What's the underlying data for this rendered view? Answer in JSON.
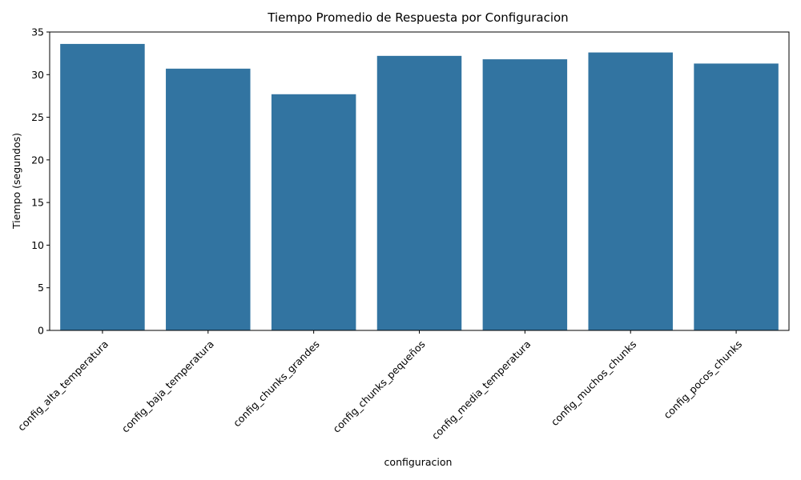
{
  "chart_data": {
    "type": "bar",
    "title": "Tiempo Promedio de Respuesta por Configuracion",
    "xlabel": "configuracion",
    "ylabel": "Tiempo (segundos)",
    "categories": [
      "config_alta_temperatura",
      "config_baja_temperatura",
      "config_chunks_grandes",
      "config_chunks_pequeños",
      "config_media_temperatura",
      "config_muchos_chunks",
      "config_pocos_chunks"
    ],
    "values": [
      33.6,
      30.7,
      27.7,
      32.2,
      31.8,
      32.6,
      31.3
    ],
    "ylim": [
      0,
      35
    ],
    "yticks": [
      "0",
      "5",
      "10",
      "15",
      "20",
      "25",
      "30",
      "35"
    ],
    "grid": false,
    "bar_color": "#3274a1"
  }
}
